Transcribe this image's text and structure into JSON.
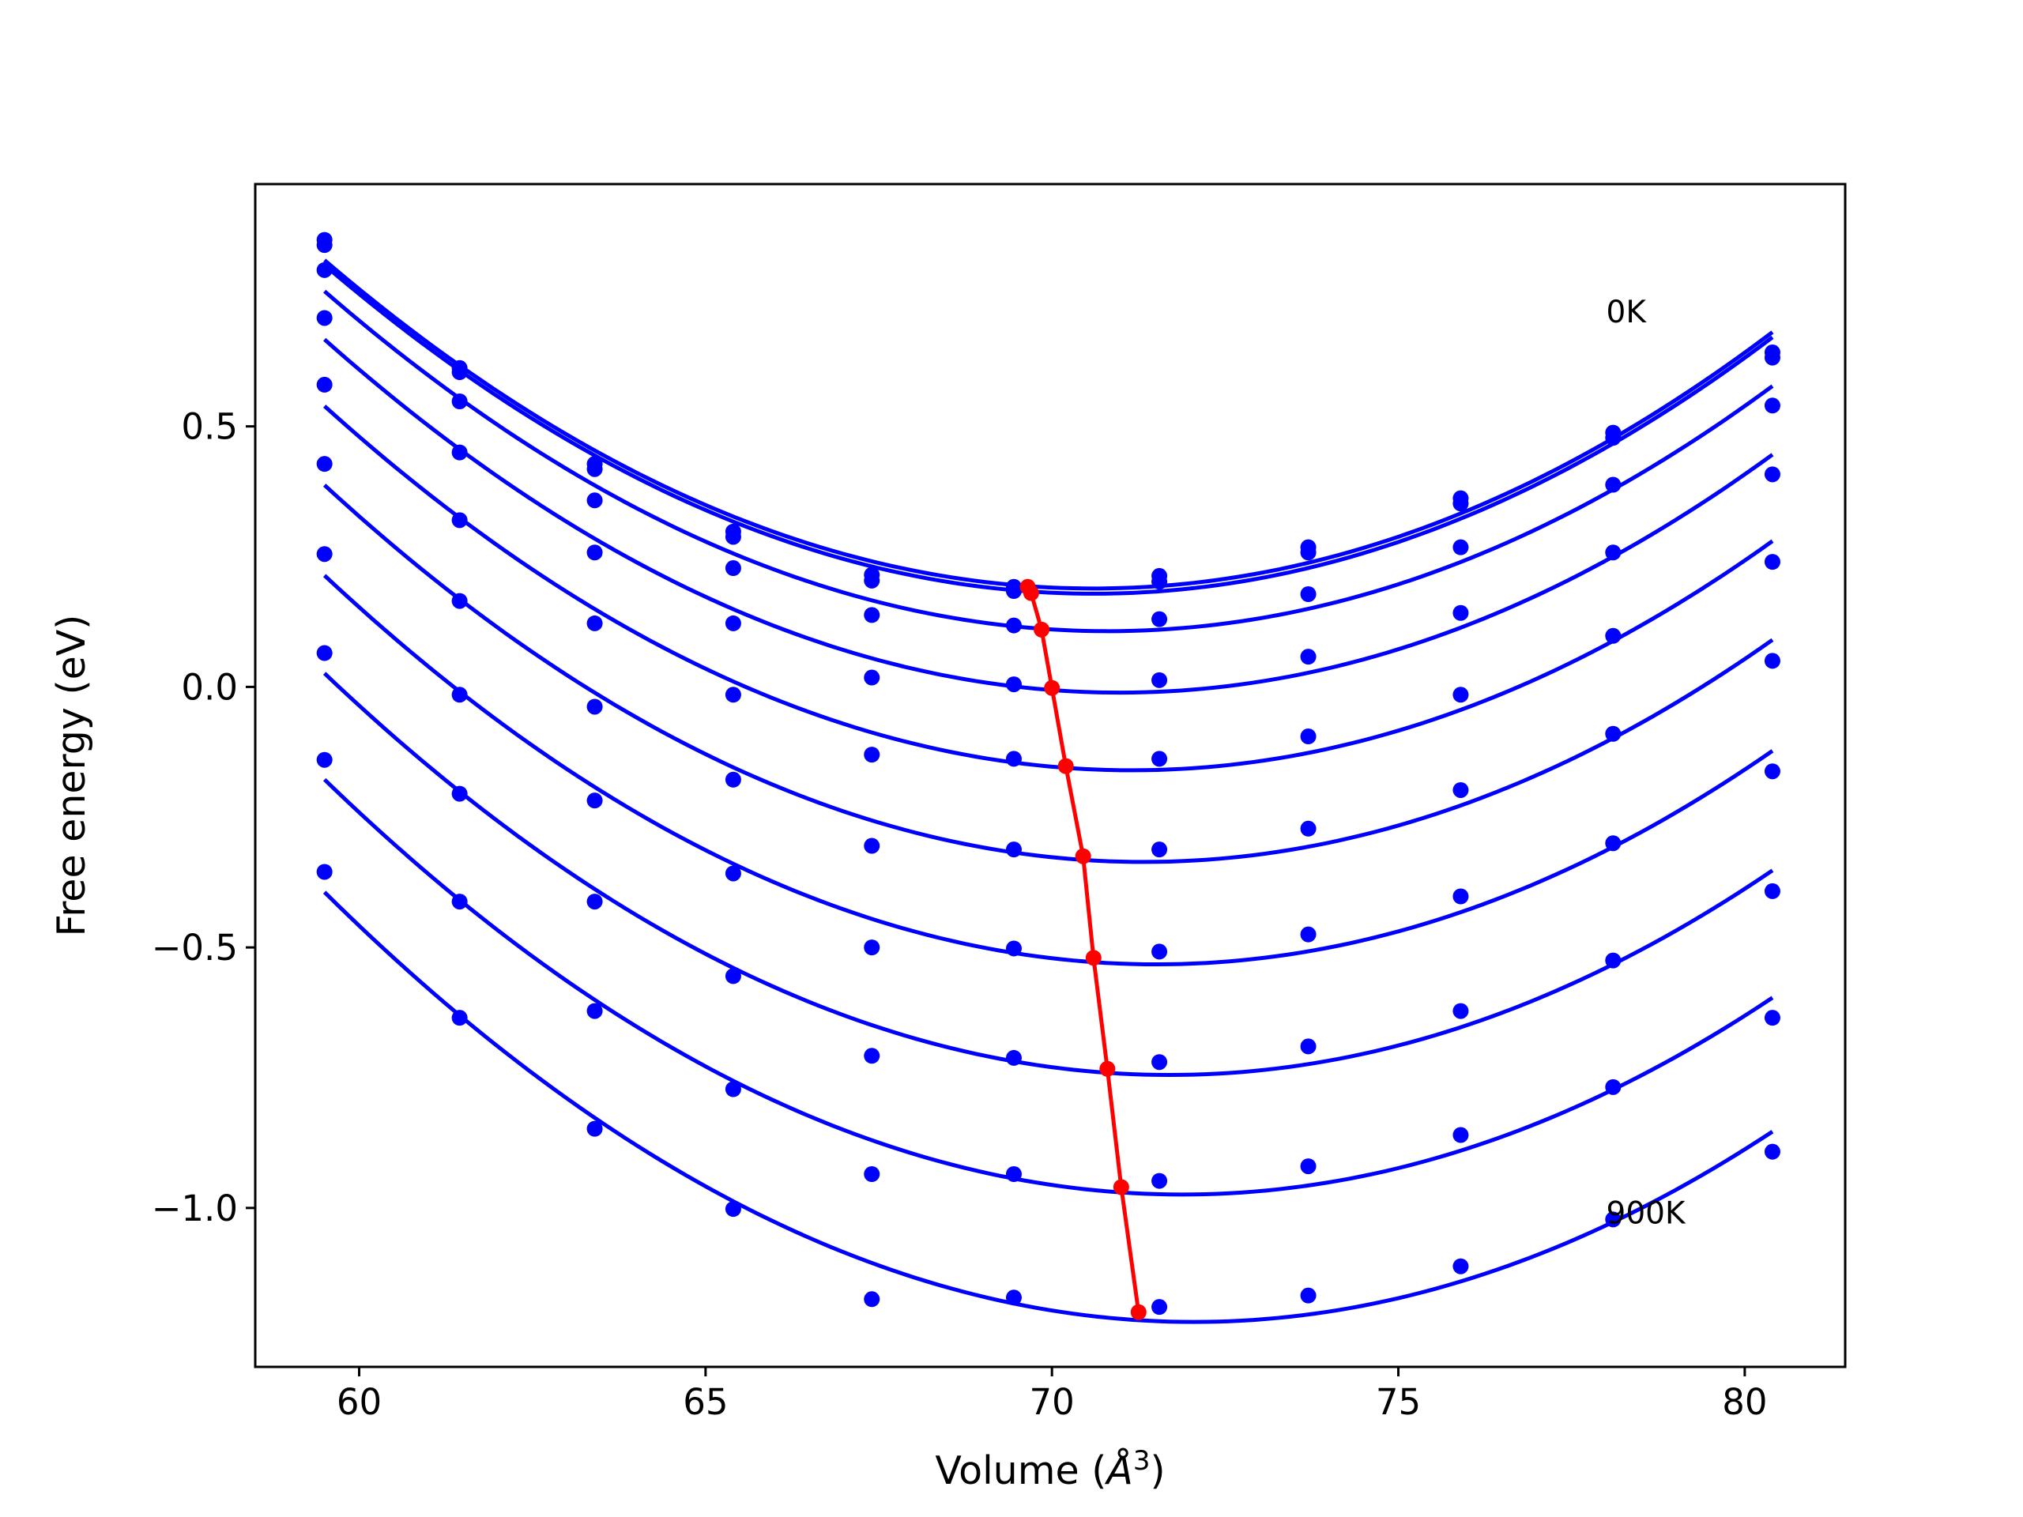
{
  "chart_data": {
    "type": "scatter",
    "title": "",
    "xlabel": "Volume (",
    "xlabel_symbol": "Å",
    "xlabel_exponent": "3",
    "xlabel_close": ")",
    "ylabel": "Free energy (eV)",
    "xlim": [
      58.5,
      81.45
    ],
    "ylim": [
      -1.305,
      0.965
    ],
    "xticks": [
      60,
      65,
      70,
      75,
      80
    ],
    "xtick_labels": [
      "60",
      "65",
      "70",
      "75",
      "80"
    ],
    "yticks": [
      -1.0,
      -0.5,
      0.0,
      0.5
    ],
    "ytick_labels": [
      "−1.0",
      "−0.5",
      "0.0",
      "0.5"
    ],
    "grid": false,
    "annotations": [
      {
        "text": "0K",
        "x": 78.0,
        "y": 0.7
      },
      {
        "text": "900K",
        "x": 78.0,
        "y": -1.03
      }
    ],
    "colors": {
      "curves": "#0000ff",
      "equilibrium": "#ff0000",
      "frame": "#000000"
    },
    "volumes": [
      59.5,
      61.45,
      63.4,
      65.4,
      67.4,
      69.45,
      71.55,
      73.7,
      75.9,
      78.1,
      80.4
    ],
    "series": [
      {
        "values": [
          0.858,
          0.612,
          0.428,
          0.298,
          0.215,
          0.192,
          0.213,
          0.268,
          0.362,
          0.488,
          0.642
        ]
      },
      {
        "values": [
          0.848,
          0.604,
          0.418,
          0.288,
          0.204,
          0.184,
          0.202,
          0.258,
          0.352,
          0.478,
          0.632
        ]
      },
      {
        "values": [
          0.8,
          0.548,
          0.358,
          0.228,
          0.138,
          0.118,
          0.13,
          0.178,
          0.268,
          0.388,
          0.54
        ]
      },
      {
        "values": [
          0.708,
          0.45,
          0.258,
          0.122,
          0.018,
          0.005,
          0.013,
          0.058,
          0.142,
          0.258,
          0.408
        ]
      },
      {
        "values": [
          0.58,
          0.32,
          0.122,
          -0.015,
          -0.13,
          -0.138,
          -0.138,
          -0.095,
          -0.015,
          0.098,
          0.24
        ]
      },
      {
        "values": [
          0.428,
          0.165,
          -0.038,
          -0.178,
          -0.305,
          -0.312,
          -0.312,
          -0.272,
          -0.198,
          -0.09,
          0.05
        ]
      },
      {
        "values": [
          0.255,
          -0.015,
          -0.218,
          -0.358,
          -0.5,
          -0.502,
          -0.508,
          -0.475,
          -0.402,
          -0.3,
          -0.162
        ]
      },
      {
        "values": [
          0.065,
          -0.205,
          -0.412,
          -0.555,
          -0.708,
          -0.712,
          -0.72,
          -0.69,
          -0.622,
          -0.525,
          -0.392
        ]
      },
      {
        "values": [
          -0.14,
          -0.412,
          -0.622,
          -0.772,
          -0.935,
          -0.935,
          -0.948,
          -0.92,
          -0.86,
          -0.768,
          -0.635
        ]
      },
      {
        "values": [
          -0.355,
          -0.635,
          -0.848,
          -1.002,
          -1.175,
          -1.172,
          -1.19,
          -1.168,
          -1.112,
          -1.022,
          -0.892
        ]
      }
    ],
    "equilibrium": {
      "x": [
        69.65,
        69.7,
        69.85,
        70.0,
        70.2,
        70.45,
        70.6,
        70.8,
        71.0,
        71.25
      ],
      "y": [
        0.192,
        0.18,
        0.11,
        -0.002,
        -0.152,
        -0.325,
        -0.52,
        -0.733,
        -0.96,
        -1.2
      ]
    }
  }
}
